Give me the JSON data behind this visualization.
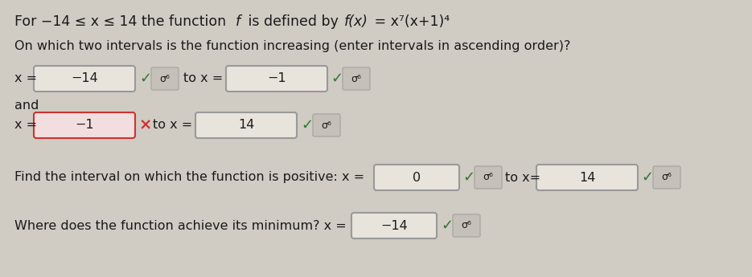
{
  "background_color": "#d0cbc3",
  "title_line1": "For −14 ≤ x ≤ 14 the function ",
  "title_f": "f",
  "title_line2": " is defined by ",
  "title_fx": "f(x)",
  "title_eq": " = x⁷(x+1)⁴",
  "q1_text": "On which two intervals is the function increasing (enter intervals in ascending order)?",
  "row1_val_left": "−14",
  "row1_val_right": "−1",
  "row2_val_left": "−1",
  "row2_val_right": "14",
  "q2_val_left": "0",
  "q2_val_right": "14",
  "q3_val": "−14",
  "check": "✓",
  "cross": "×",
  "sigma": "σ⁶",
  "box_normal_bg": "#e8e4dc",
  "box_normal_border": "#999999",
  "box_error_border": "#cc3333",
  "box_error_bg": "#f2dede",
  "check_color": "#2a7a2a",
  "cross_color": "#cc3333",
  "text_color": "#1a1a1a",
  "sigma_box_bg": "#c5c0b8",
  "sigma_box_border": "#aaa9a5"
}
